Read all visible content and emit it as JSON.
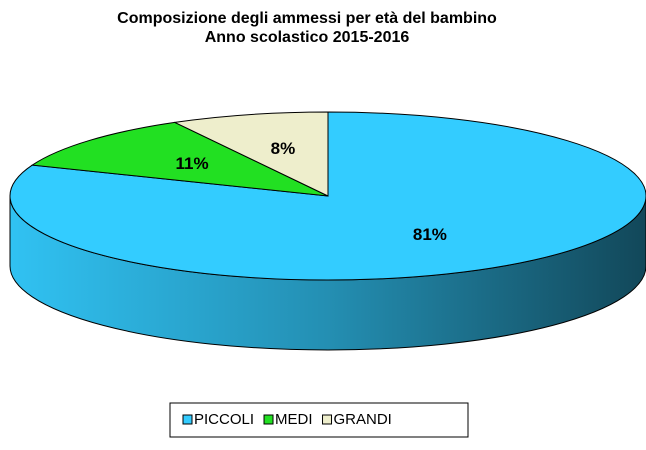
{
  "chart_data": {
    "type": "pie3d",
    "title": "Composizione degli ammessi per età del bambino",
    "subtitle": "Anno scolastico 2015-2016",
    "categories": [
      "PICCOLI",
      "MEDI",
      "GRANDI"
    ],
    "values": [
      81,
      11,
      8
    ],
    "value_labels": [
      "81%",
      "11%",
      "8%"
    ],
    "colors": [
      "#33ccff",
      "#22e022",
      "#eeeecc"
    ],
    "legend": "bottom"
  }
}
